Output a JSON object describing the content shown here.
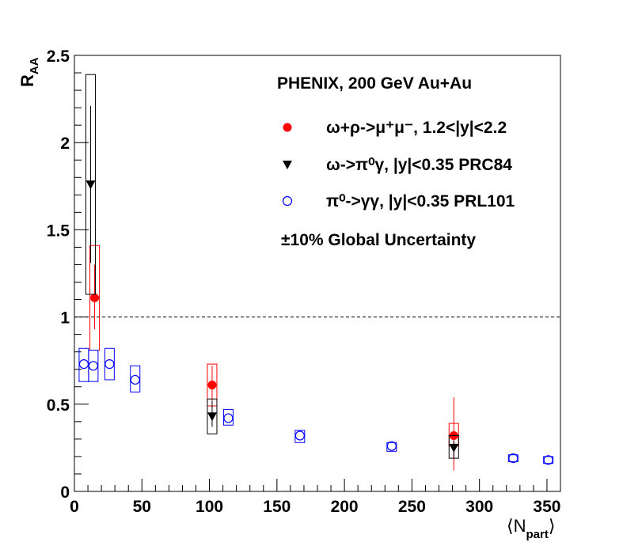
{
  "chart_data": {
    "type": "scatter",
    "title": "PHENIX, 200 GeV Au+Au",
    "xlabel": "⟨N",
    "xlabel_sub": "part",
    "xlabel_close": "⟩",
    "ylabel": "R",
    "ylabel_sub": "AA",
    "xlim": [
      0,
      360
    ],
    "ylim": [
      0,
      2.5
    ],
    "x_ticks": [
      0,
      50,
      100,
      150,
      200,
      250,
      300,
      350
    ],
    "y_ticks": [
      0,
      0.5,
      1,
      1.5,
      2,
      2.5
    ],
    "x_tick_labels": [
      "0",
      "50",
      "100",
      "150",
      "200",
      "250",
      "300",
      "350"
    ],
    "y_tick_labels": [
      "0",
      "0.5",
      "1",
      "1.5",
      "2",
      "2.5"
    ],
    "reference_line": 1,
    "grid": false,
    "legend_position": "top-right",
    "series": [
      {
        "name": "ω+ρ->μ⁺μ⁻, 1.2<|y|<2.2",
        "marker": "filled-circle",
        "color": "#ff0000",
        "points": [
          {
            "x": 15,
            "y": 1.11,
            "stat_lo": 0.93,
            "stat_hi": 1.3,
            "sys_lo": 0.81,
            "sys_hi": 1.41
          },
          {
            "x": 102,
            "y": 0.61,
            "stat_lo": 0.52,
            "stat_hi": 0.72,
            "sys_lo": 0.49,
            "sys_hi": 0.73
          },
          {
            "x": 281,
            "y": 0.32,
            "stat_lo": 0.12,
            "stat_hi": 0.54,
            "sys_lo": 0.26,
            "sys_hi": 0.39
          }
        ]
      },
      {
        "name": "ω->π⁰γ, |y|<0.35 PRC84",
        "marker": "filled-triangle-down",
        "color": "#000000",
        "points": [
          {
            "x": 12,
            "y": 1.76,
            "stat_lo": 1.31,
            "stat_hi": 2.21,
            "sys_lo": 1.13,
            "sys_hi": 2.39
          },
          {
            "x": 102,
            "y": 0.43,
            "stat_lo": 0.37,
            "stat_hi": 0.52,
            "sys_lo": 0.33,
            "sys_hi": 0.53
          },
          {
            "x": 281,
            "y": 0.25,
            "stat_lo": 0.19,
            "stat_hi": 0.29,
            "sys_lo": 0.19,
            "sys_hi": 0.32
          }
        ]
      },
      {
        "name": "π⁰->γγ, |y|<0.35 PRL101",
        "marker": "open-circle",
        "color": "#0000ff",
        "points": [
          {
            "x": 7,
            "y": 0.73,
            "sys_lo": 0.63,
            "sys_hi": 0.82
          },
          {
            "x": 14,
            "y": 0.72,
            "sys_lo": 0.63,
            "sys_hi": 0.81
          },
          {
            "x": 26,
            "y": 0.73,
            "sys_lo": 0.64,
            "sys_hi": 0.82
          },
          {
            "x": 45,
            "y": 0.64,
            "sys_lo": 0.57,
            "sys_hi": 0.72
          },
          {
            "x": 114,
            "y": 0.42,
            "sys_lo": 0.38,
            "sys_hi": 0.47
          },
          {
            "x": 167,
            "y": 0.32,
            "sys_lo": 0.28,
            "sys_hi": 0.35
          },
          {
            "x": 235,
            "y": 0.26,
            "sys_lo": 0.23,
            "sys_hi": 0.28
          },
          {
            "x": 325,
            "y": 0.19,
            "sys_lo": 0.17,
            "sys_hi": 0.21
          },
          {
            "x": 351,
            "y": 0.18,
            "sys_lo": 0.16,
            "sys_hi": 0.2
          }
        ]
      }
    ],
    "annotation": "±10% Global Uncertainty"
  }
}
